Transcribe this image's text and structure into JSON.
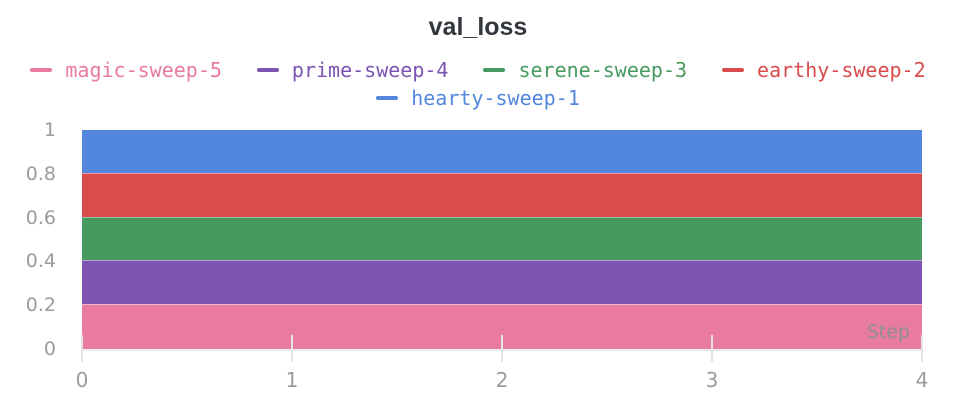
{
  "chart_data": {
    "type": "area",
    "title": "val_loss",
    "xlabel": "Step",
    "ylabel": "",
    "x": [
      0,
      1,
      2,
      3,
      4
    ],
    "xlim": [
      0,
      4
    ],
    "ylim": [
      0,
      1
    ],
    "xticks": [
      "0",
      "1",
      "2",
      "3",
      "4"
    ],
    "yticks": [
      "0",
      "0.2",
      "0.4",
      "0.6",
      "0.8",
      "1"
    ],
    "grid": false,
    "legend_position": "top",
    "legend_columns": 4,
    "series": [
      {
        "name": "magic-sweep-5",
        "color": "#e87b9f",
        "values": [
          0.2,
          0.2,
          0.2,
          0.2,
          0.2
        ]
      },
      {
        "name": "prime-sweep-4",
        "color": "#7d54b2",
        "values": [
          0.4,
          0.4,
          0.4,
          0.4,
          0.4
        ]
      },
      {
        "name": "serene-sweep-3",
        "color": "#479a5f",
        "values": [
          0.6,
          0.6,
          0.6,
          0.6,
          0.6
        ]
      },
      {
        "name": "earthy-sweep-2",
        "color": "#d94c4e",
        "values": [
          0.8,
          0.8,
          0.8,
          0.8,
          0.8
        ]
      },
      {
        "name": "hearty-sweep-1",
        "color": "#5387dd",
        "values": [
          1.0,
          1.0,
          1.0,
          1.0,
          1.0
        ]
      }
    ]
  }
}
